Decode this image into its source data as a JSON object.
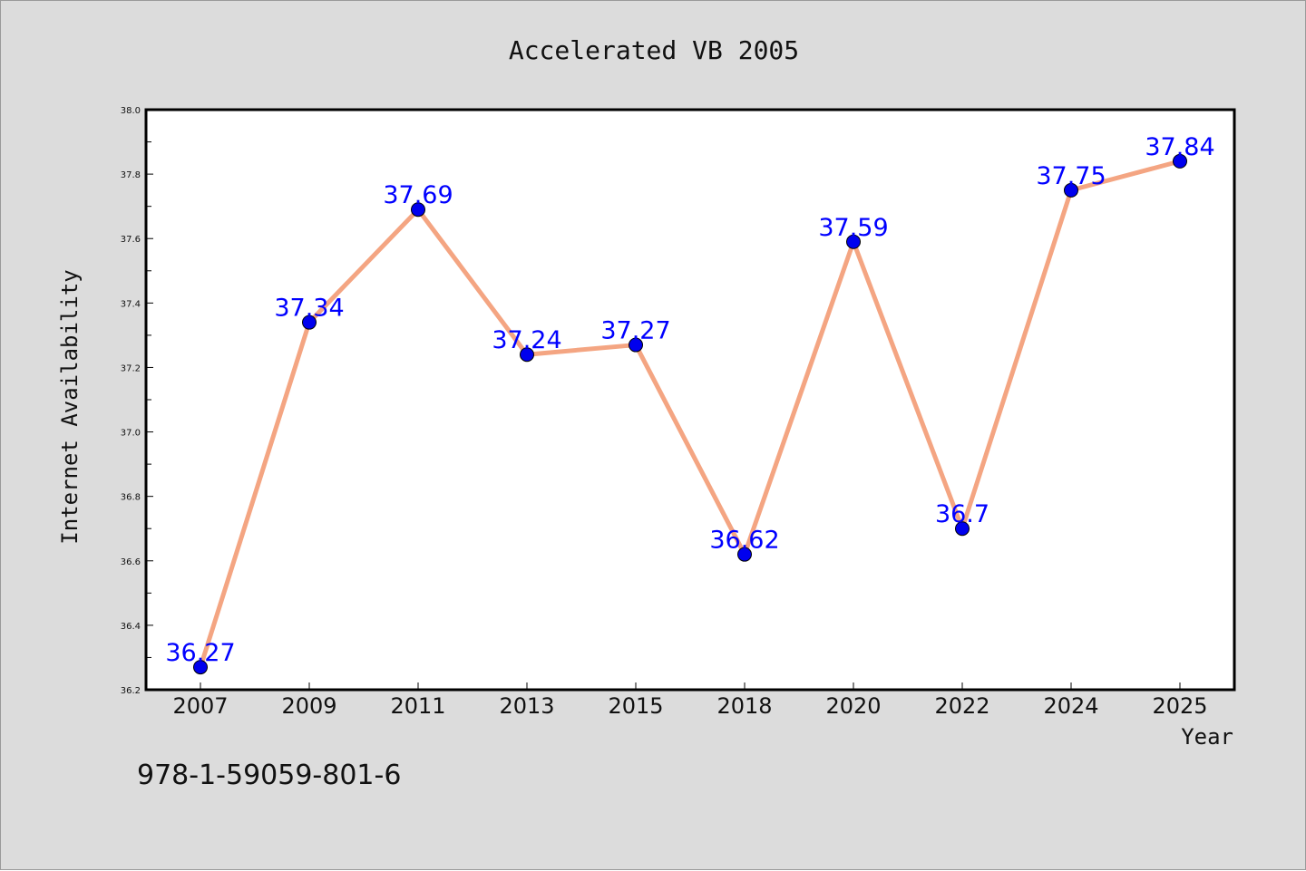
{
  "chart_data": {
    "type": "line",
    "title": "Accelerated VB 2005",
    "xlabel": "Year",
    "ylabel": "Internet Availability",
    "categories": [
      "2007",
      "2009",
      "2011",
      "2013",
      "2015",
      "2018",
      "2020",
      "2022",
      "2024",
      "2025"
    ],
    "series": [
      {
        "values": [
          36.27,
          37.34,
          37.69,
          37.24,
          37.27,
          36.62,
          37.59,
          36.7,
          37.75,
          37.84
        ],
        "data_labels": [
          "36.27",
          "37.34",
          "37.69",
          "37.24",
          "37.27",
          "36.62",
          "37.59",
          "36.7",
          "37.75",
          "37.84"
        ]
      }
    ],
    "ylim": [
      36.2,
      38.0
    ],
    "yticks": [
      "36.2",
      "36.4",
      "36.6",
      "36.8",
      "37.0",
      "37.2",
      "37.4",
      "37.6",
      "37.8",
      "38.0"
    ],
    "grid": false,
    "colors": {
      "line": "#f4a582",
      "marker": "#0000ee",
      "label": "#0000ff",
      "background": "#dcdcdc",
      "plot_background": "#ffffff"
    }
  },
  "footer_text": "978-1-59059-801-6"
}
